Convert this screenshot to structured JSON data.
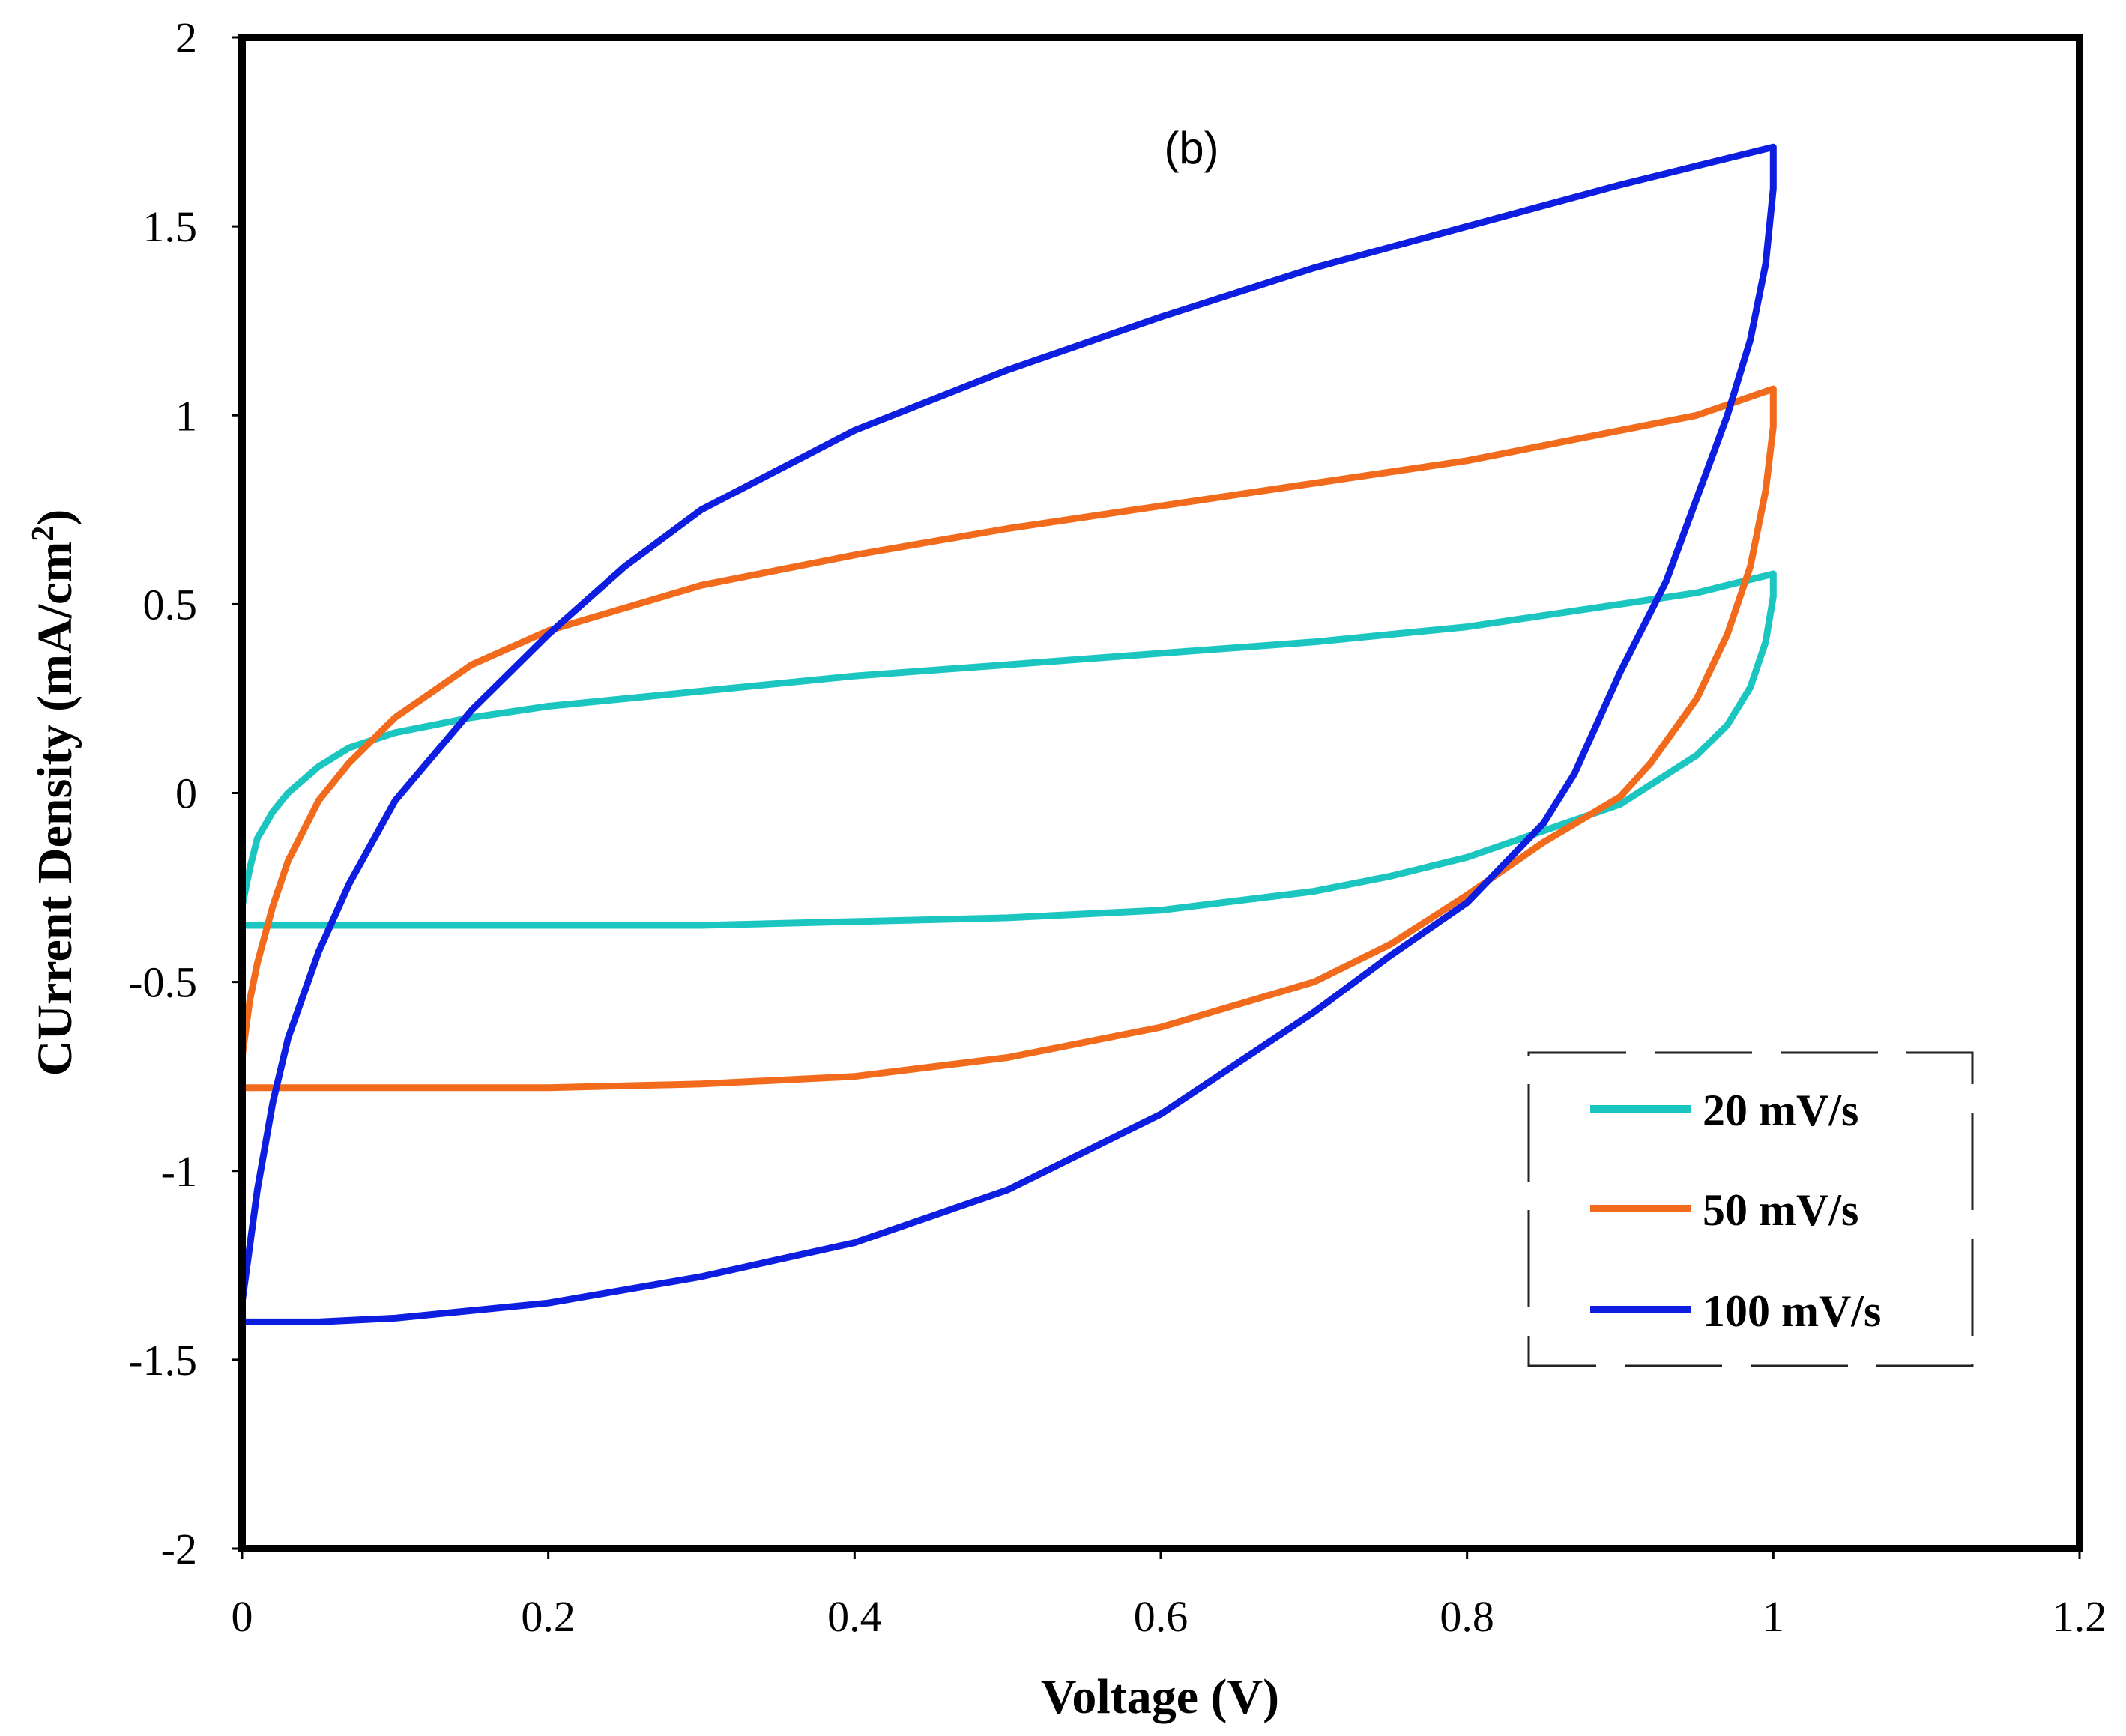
{
  "chart_data": {
    "type": "line",
    "title": "(b)",
    "xlabel": "Voltage (V)",
    "ylabel": "CUrrent Density (mA/cm",
    "ylabel_sup": "2",
    "ylabel_close": ")",
    "xlim": [
      0,
      1.2
    ],
    "ylim": [
      -2,
      2
    ],
    "xticks": [
      0,
      0.2,
      0.4,
      0.6,
      0.8,
      1,
      1.2
    ],
    "xtick_labels": [
      "0",
      "0.2",
      "0.4",
      "0.6",
      "0.8",
      "1",
      "1.2"
    ],
    "yticks": [
      -2,
      -1.5,
      -1,
      -0.5,
      0,
      0.5,
      1,
      1.5,
      2
    ],
    "ytick_labels": [
      "-2",
      "-1.5",
      "-1",
      "-0.5",
      "0",
      "0.5",
      "1",
      "1.5",
      "2"
    ],
    "grid": false,
    "legend_position": "bottom-right",
    "series": [
      {
        "name": "20 mV/s",
        "color": "#1cc6c0",
        "x": [
          0,
          0.005,
          0.01,
          0.02,
          0.03,
          0.05,
          0.07,
          0.1,
          0.15,
          0.2,
          0.3,
          0.4,
          0.5,
          0.6,
          0.7,
          0.8,
          0.9,
          0.95,
          1,
          1,
          0.995,
          0.985,
          0.97,
          0.95,
          0.9,
          0.85,
          0.8,
          0.75,
          0.7,
          0.6,
          0.5,
          0.4,
          0.3,
          0.2,
          0.1,
          0.05,
          0.01,
          0
        ],
        "y": [
          -0.3,
          -0.2,
          -0.12,
          -0.05,
          0.0,
          0.07,
          0.12,
          0.16,
          0.2,
          0.23,
          0.27,
          0.31,
          0.34,
          0.37,
          0.4,
          0.44,
          0.5,
          0.53,
          0.58,
          0.52,
          0.4,
          0.28,
          0.18,
          0.1,
          -0.03,
          -0.1,
          -0.17,
          -0.22,
          -0.26,
          -0.31,
          -0.33,
          -0.34,
          -0.35,
          -0.35,
          -0.35,
          -0.35,
          -0.35,
          -0.35
        ]
      },
      {
        "name": "50 mV/s",
        "color": "#f26b1d",
        "x": [
          0,
          0.005,
          0.01,
          0.02,
          0.03,
          0.05,
          0.07,
          0.1,
          0.15,
          0.2,
          0.3,
          0.4,
          0.5,
          0.6,
          0.7,
          0.8,
          0.9,
          0.95,
          1,
          1,
          0.995,
          0.985,
          0.97,
          0.95,
          0.92,
          0.9,
          0.85,
          0.8,
          0.75,
          0.7,
          0.6,
          0.5,
          0.4,
          0.3,
          0.2,
          0.1,
          0.05,
          0
        ],
        "y": [
          -0.7,
          -0.55,
          -0.45,
          -0.3,
          -0.18,
          -0.02,
          0.08,
          0.2,
          0.34,
          0.43,
          0.55,
          0.63,
          0.7,
          0.76,
          0.82,
          0.88,
          0.96,
          1.0,
          1.07,
          0.97,
          0.8,
          0.6,
          0.42,
          0.25,
          0.08,
          -0.01,
          -0.13,
          -0.27,
          -0.4,
          -0.5,
          -0.62,
          -0.7,
          -0.75,
          -0.77,
          -0.78,
          -0.78,
          -0.78,
          -0.78
        ]
      },
      {
        "name": "100 mV/s",
        "color": "#0d1ee0",
        "x": [
          0,
          0.005,
          0.01,
          0.02,
          0.03,
          0.05,
          0.07,
          0.1,
          0.15,
          0.2,
          0.25,
          0.3,
          0.4,
          0.5,
          0.6,
          0.7,
          0.8,
          0.9,
          1,
          1,
          0.995,
          0.985,
          0.97,
          0.95,
          0.93,
          0.9,
          0.87,
          0.85,
          0.8,
          0.75,
          0.7,
          0.6,
          0.5,
          0.4,
          0.3,
          0.2,
          0.1,
          0.05,
          0
        ],
        "y": [
          -1.35,
          -1.2,
          -1.05,
          -0.82,
          -0.65,
          -0.42,
          -0.24,
          -0.02,
          0.22,
          0.42,
          0.6,
          0.75,
          0.96,
          1.12,
          1.26,
          1.39,
          1.5,
          1.61,
          1.71,
          1.6,
          1.4,
          1.2,
          1.0,
          0.78,
          0.56,
          0.32,
          0.05,
          -0.08,
          -0.29,
          -0.43,
          -0.58,
          -0.85,
          -1.05,
          -1.19,
          -1.28,
          -1.35,
          -1.39,
          -1.4,
          -1.4
        ]
      }
    ]
  }
}
